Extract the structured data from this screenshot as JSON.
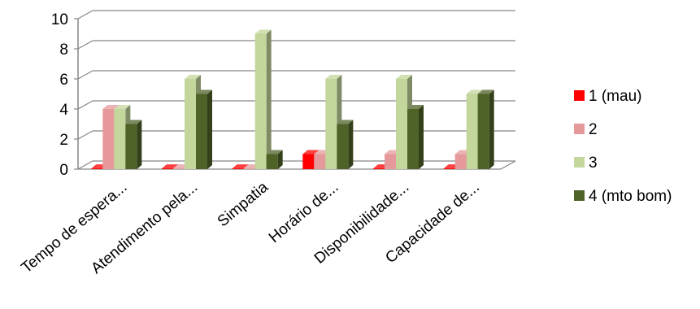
{
  "chart_data": {
    "type": "bar",
    "three_d": true,
    "title": "",
    "xlabel": "",
    "ylabel": "",
    "ylim": [
      0,
      10
    ],
    "yticks": [
      0,
      2,
      4,
      6,
      8,
      10
    ],
    "grid": true,
    "legend_position": "right",
    "categories": [
      "Tempo de espera...",
      "Atendimento pela...",
      "Simpatia",
      "Horário de...",
      "Disponibilidade...",
      "Capacidade de..."
    ],
    "series": [
      {
        "name": "1 (mau)",
        "color": "#ff0000",
        "values": [
          0,
          0,
          0,
          1,
          0,
          0
        ]
      },
      {
        "name": "2",
        "color": "#e6999b",
        "values": [
          4,
          0,
          0,
          1,
          1,
          1
        ]
      },
      {
        "name": "3",
        "color": "#c3d69b",
        "values": [
          4,
          6,
          9,
          6,
          6,
          5
        ]
      },
      {
        "name": "4 (mto bom)",
        "color": "#4f6228",
        "values": [
          3,
          5,
          1,
          3,
          4,
          5
        ]
      }
    ]
  }
}
